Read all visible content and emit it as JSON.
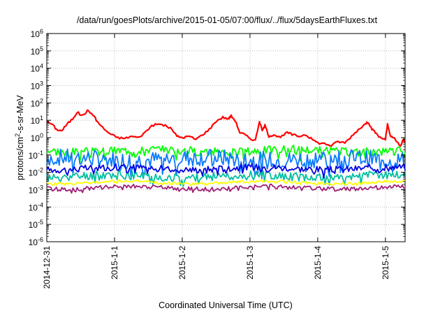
{
  "chart_data": {
    "type": "line",
    "title": "/data/run/goesPlots/archive/2015-01-05/07:00/flux/../flux/5daysEarthFluxes.txt",
    "xlabel": "Coordinated Universal Time (UTC)",
    "ylabel": {
      "base": "protons/cm",
      "sup": "2",
      "rest": "-s-sr-MeV"
    },
    "yscale": "log",
    "ylim_exponent": [
      -6,
      6
    ],
    "y_ticks": [
      {
        "base": "10",
        "exp": "-6"
      },
      {
        "base": "10",
        "exp": "-5"
      },
      {
        "base": "10",
        "exp": "-4"
      },
      {
        "base": "10",
        "exp": "-3"
      },
      {
        "base": "10",
        "exp": "-2"
      },
      {
        "base": "10",
        "exp": "-1"
      },
      {
        "base": "10",
        "exp": "0"
      },
      {
        "base": "10",
        "exp": "1"
      },
      {
        "base": "10",
        "exp": "2"
      },
      {
        "base": "10",
        "exp": "3"
      },
      {
        "base": "10",
        "exp": "4"
      },
      {
        "base": "10",
        "exp": "5"
      },
      {
        "base": "10",
        "exp": "6"
      }
    ],
    "xlim": [
      "2014-12-31 00:00",
      "2015-01-05 07:00"
    ],
    "x_ticks": [
      {
        "label": "2014-12-31",
        "day": 0
      },
      {
        "label": "2015-1-1",
        "day": 1
      },
      {
        "label": "2015-1-2",
        "day": 2
      },
      {
        "label": "2015-1-3",
        "day": 3
      },
      {
        "label": "2015-1-4",
        "day": 4
      },
      {
        "label": "2015-1-5",
        "day": 5
      }
    ],
    "x_max_day": 5.29,
    "grid": true,
    "series": [
      {
        "color": "#ff0000",
        "points": [
          [
            0,
            8
          ],
          [
            0.08,
            6
          ],
          [
            0.14,
            3
          ],
          [
            0.22,
            2.5
          ],
          [
            0.3,
            6
          ],
          [
            0.38,
            12
          ],
          [
            0.45,
            30
          ],
          [
            0.52,
            18
          ],
          [
            0.6,
            35
          ],
          [
            0.68,
            22
          ],
          [
            0.75,
            8
          ],
          [
            0.85,
            3
          ],
          [
            0.95,
            1.5
          ],
          [
            1.05,
            1.0
          ],
          [
            1.15,
            0.9
          ],
          [
            1.25,
            1.2
          ],
          [
            1.35,
            1.0
          ],
          [
            1.45,
            2
          ],
          [
            1.55,
            5
          ],
          [
            1.65,
            6
          ],
          [
            1.75,
            5
          ],
          [
            1.85,
            3
          ],
          [
            1.92,
            1.2
          ],
          [
            2.0,
            1.0
          ],
          [
            2.1,
            1.2
          ],
          [
            2.2,
            0.8
          ],
          [
            2.3,
            1.5
          ],
          [
            2.4,
            3
          ],
          [
            2.5,
            9
          ],
          [
            2.6,
            15
          ],
          [
            2.68,
            12
          ],
          [
            2.72,
            18
          ],
          [
            2.78,
            10
          ],
          [
            2.85,
            2
          ],
          [
            2.92,
            1.5
          ],
          [
            3.0,
            0.9
          ],
          [
            3.08,
            0.7
          ],
          [
            3.14,
            9
          ],
          [
            3.18,
            2.5
          ],
          [
            3.22,
            5
          ],
          [
            3.28,
            1.2
          ],
          [
            3.35,
            1.5
          ],
          [
            3.45,
            1.0
          ],
          [
            3.55,
            2
          ],
          [
            3.62,
            1.5
          ],
          [
            3.72,
            1.2
          ],
          [
            3.82,
            1.5
          ],
          [
            3.9,
            0.9
          ],
          [
            4.0,
            0.5
          ],
          [
            4.1,
            0.45
          ],
          [
            4.2,
            0.35
          ],
          [
            4.3,
            0.6
          ],
          [
            4.4,
            0.5
          ],
          [
            4.5,
            1.2
          ],
          [
            4.6,
            3
          ],
          [
            4.7,
            6
          ],
          [
            4.75,
            8
          ],
          [
            4.8,
            3
          ],
          [
            4.85,
            2
          ],
          [
            4.92,
            1
          ],
          [
            5.0,
            0.8
          ],
          [
            5.03,
            6
          ],
          [
            5.07,
            1.2
          ],
          [
            5.12,
            1.0
          ],
          [
            5.18,
            0.5
          ],
          [
            5.22,
            0.3
          ],
          [
            5.26,
            0.8
          ],
          [
            5.29,
            0.5
          ]
        ]
      },
      {
        "color": "#00ff00",
        "base": 0.18,
        "amp": 0.25,
        "dips": 0.3,
        "seed": 3
      },
      {
        "color": "#0a7aff",
        "base": 0.06,
        "amp": 0.5,
        "dips": 0.55,
        "seed": 7
      },
      {
        "color": "#00bfa0",
        "base": 0.006,
        "amp": 0.25,
        "dips": 0.25,
        "seed": 11
      },
      {
        "color": "#0000e0",
        "base": 0.017,
        "amp": 0.2,
        "dips": 0.2,
        "seed": 17
      },
      {
        "color": "#ffff00",
        "base": 0.0026,
        "amp": 0.08,
        "dips": 0.05,
        "seed": 23
      },
      {
        "color": "#a01e78",
        "base": 0.0013,
        "amp": 0.12,
        "dips": 0.1,
        "seed": 29
      }
    ]
  }
}
